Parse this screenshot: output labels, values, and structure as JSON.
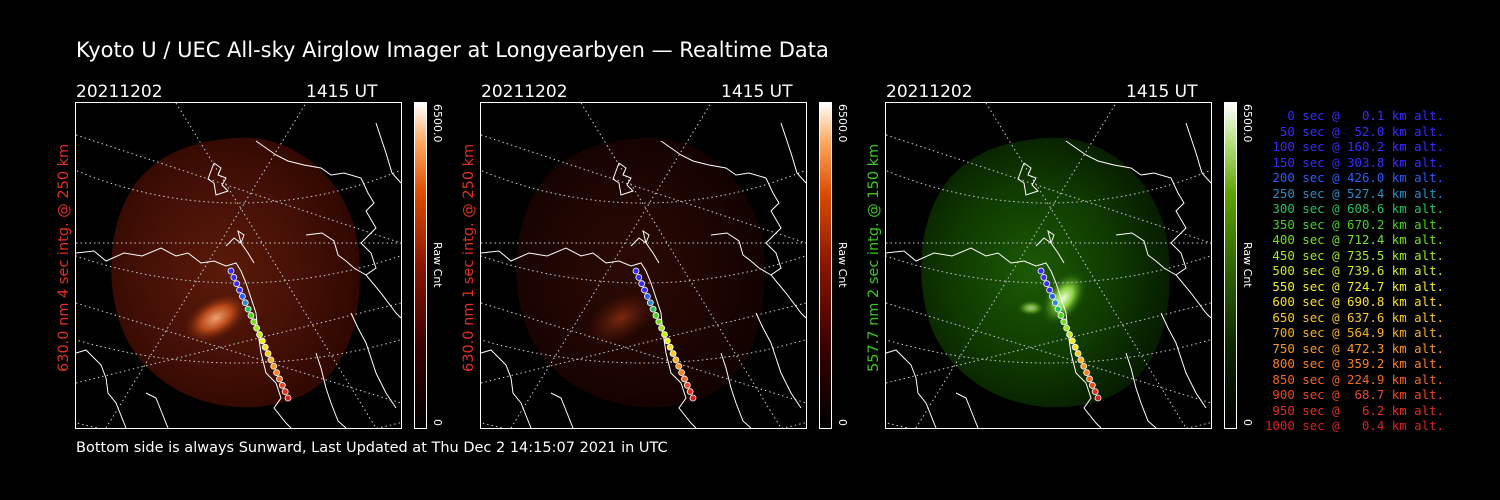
{
  "title": "Kyoto U / UEC All-sky Airglow Imager at Longyearbyen — Realtime Data",
  "footer": "Bottom side is always Sunward, Last Updated at Thu Dec  2 14:15:07 2021 in UTC",
  "panels": [
    {
      "date": "20211202",
      "time": "1415 UT",
      "ylabel": "630.0 nm 4 sec intg. @ 250 km",
      "label_color": "#e03020",
      "colorbar_max": "6500.0",
      "colorbar_min": "0",
      "colorbar_label": "Raw Cnt",
      "glow": "red",
      "brightness": 1.0
    },
    {
      "date": "20211202",
      "time": "1415 UT",
      "ylabel": "630.0 nm 1 sec intg. @ 250 km",
      "label_color": "#e03020",
      "colorbar_max": "6500.0",
      "colorbar_min": "0",
      "colorbar_label": "Raw Cnt",
      "glow": "red",
      "brightness": 0.35
    },
    {
      "date": "20211202",
      "time": "1415 UT",
      "ylabel": "557.7 nm 2 sec intg. @ 150 km",
      "label_color": "#3cc820",
      "colorbar_max": "6500.0",
      "colorbar_min": "0",
      "colorbar_label": "Raw Cnt",
      "glow": "green",
      "brightness": 1.0
    }
  ],
  "legend": [
    {
      "text": "0 sec @   0.1 km alt.",
      "color": "#3a2aff"
    },
    {
      "text": "50 sec @  52.0 km alt.",
      "color": "#3a2aff"
    },
    {
      "text": "100 sec @ 160.2 km alt.",
      "color": "#3a2aff"
    },
    {
      "text": "150 sec @ 303.8 km alt.",
      "color": "#3a2aff"
    },
    {
      "text": "200 sec @ 426.0 km alt.",
      "color": "#2a5cff"
    },
    {
      "text": "250 sec @ 527.4 km alt.",
      "color": "#2a8cc8"
    },
    {
      "text": "300 sec @ 608.6 km alt.",
      "color": "#26c060"
    },
    {
      "text": "350 sec @ 670.2 km alt.",
      "color": "#4ad020"
    },
    {
      "text": "400 sec @ 712.4 km alt.",
      "color": "#72e020"
    },
    {
      "text": "450 sec @ 735.5 km alt.",
      "color": "#a0e820"
    },
    {
      "text": "500 sec @ 739.6 km alt.",
      "color": "#c8ec20"
    },
    {
      "text": "550 sec @ 724.7 km alt.",
      "color": "#f0f020"
    },
    {
      "text": "600 sec @ 690.8 km alt.",
      "color": "#f8e020"
    },
    {
      "text": "650 sec @ 637.6 km alt.",
      "color": "#f8c820"
    },
    {
      "text": "700 sec @ 564.9 km alt.",
      "color": "#f8b020"
    },
    {
      "text": "750 sec @ 472.3 km alt.",
      "color": "#f89820"
    },
    {
      "text": "800 sec @ 359.2 km alt.",
      "color": "#f88020"
    },
    {
      "text": "850 sec @ 224.9 km alt.",
      "color": "#f06820"
    },
    {
      "text": "900 sec @  68.7 km alt.",
      "color": "#e84820"
    },
    {
      "text": "950 sec @   6.2 km alt.",
      "color": "#e03020"
    },
    {
      "text": "1000 sec @   0.4 km alt.",
      "color": "#d82020"
    }
  ]
}
